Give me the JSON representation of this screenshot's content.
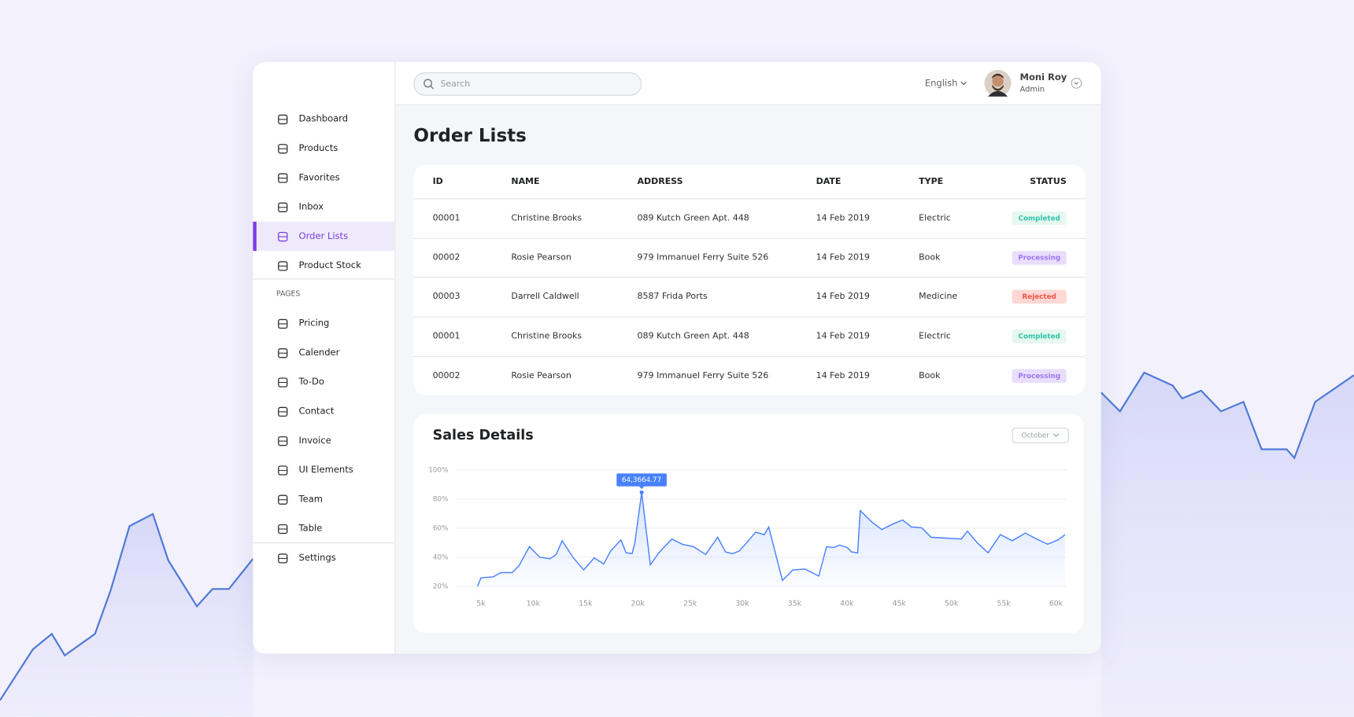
{
  "sidebar": {
    "menu": [
      "Dashboard",
      "Products",
      "Favorites",
      "Inbox",
      "Order Lists",
      "Product Stock"
    ],
    "section_label": "PAGES",
    "pages": [
      "Pricing",
      "Calender",
      "To-Do",
      "Contact",
      "Invoice",
      "UI Elements",
      "Team",
      "Table"
    ],
    "settings": "Settings"
  },
  "header": {
    "search_placeholder": "Search",
    "language": "English",
    "user": {
      "name": "Moni Roy",
      "role": "Admin"
    }
  },
  "page_title": "Order Lists",
  "table": {
    "columns": [
      "ID",
      "NAME",
      "ADDRESS",
      "DATE",
      "TYPE",
      "STATUS"
    ],
    "rows": [
      [
        "00001",
        "Christine Brooks",
        "089 Kutch Green Apt. 448",
        "14 Feb 2019",
        "Electric",
        {
          "text": "Completed",
          "color": "#00b69b",
          "background": "#e6f8ef"
        }
      ],
      [
        "00002",
        "Rosie Pearson",
        "979 Immanuel Ferry Suite 526",
        "14 Feb 2019",
        "Book",
        {
          "text": "Processing",
          "color": "#8f5cf0",
          "background": "#e8defc"
        }
      ],
      [
        "00003",
        "Darrell Caldwell",
        "8587 Frida Ports",
        "14 Feb 2019",
        "Medicine",
        {
          "text": "Rejected",
          "color": "#ef3826",
          "background": "#fcd7d4"
        }
      ],
      [
        "00001",
        "Christine Brooks",
        "089 Kutch Green Apt. 448",
        "14 Feb 2019",
        "Electric",
        {
          "text": "Completed",
          "color": "#00b69b",
          "background": "#e6f8ef"
        }
      ],
      [
        "00002",
        "Rosie Pearson",
        "979 Immanuel Ferry Suite 526",
        "14 Feb 2019",
        "Book",
        {
          "text": "Processing",
          "color": "#8f5cf0",
          "background": "#e8defc"
        }
      ]
    ]
  },
  "sales": {
    "title": "Sales Details",
    "filter": "October",
    "chart_data": {
      "type": "line",
      "color": "#4880ff",
      "grid": true,
      "x": [
        4670,
        5000,
        6160,
        6900,
        7980,
        8640,
        9630,
        10620,
        11610,
        12190,
        12770,
        13840,
        14830,
        15830,
        16740,
        17400,
        18390,
        18880,
        19460,
        19710,
        20370,
        21200,
        22020,
        23260,
        24260,
        25330,
        26490,
        27640,
        28390,
        29050,
        29710,
        30370,
        31280,
        32110,
        32520,
        33840,
        34830,
        36000,
        37310,
        38060,
        38720,
        39300,
        40040,
        40450,
        41030,
        41280,
        42440,
        43350,
        44340,
        45330,
        46160,
        47150,
        48060,
        50950,
        51530,
        52520,
        53510,
        54670,
        55830,
        57070,
        58140,
        59210,
        60210,
        60870
      ],
      "values": [
        20,
        25.9,
        26.5,
        29.5,
        29.5,
        34.2,
        47.3,
        40.1,
        39.0,
        41.9,
        51.4,
        39.6,
        31.3,
        39.6,
        35.4,
        44.3,
        52.0,
        43.1,
        42.5,
        49.6,
        84.6,
        34.8,
        43.1,
        52.6,
        49.0,
        47.3,
        41.9,
        53.8,
        43.7,
        42.5,
        44.3,
        49.6,
        57.3,
        55.6,
        60.9,
        24.1,
        31.3,
        31.9,
        27.1,
        47.3,
        46.7,
        48.4,
        46.7,
        43.7,
        43.1,
        72.1,
        63.9,
        59.1,
        62.7,
        65.6,
        60.9,
        60.3,
        53.8,
        52.6,
        57.9,
        49.6,
        43.1,
        55.6,
        51.4,
        56.7,
        52.6,
        49.0,
        52.0,
        55.6
      ],
      "xlim": [
        3600,
        61000
      ],
      "ylim": [
        20,
        100
      ],
      "xticks": [
        {
          "value": 5000,
          "label": "5k"
        },
        {
          "value": 10000,
          "label": "10k"
        },
        {
          "value": 15000,
          "label": "15k"
        },
        {
          "value": 20000,
          "label": "20k"
        },
        {
          "value": 25000,
          "label": "25k"
        },
        {
          "value": 30000,
          "label": "30k"
        },
        {
          "value": 35000,
          "label": "35k"
        },
        {
          "value": 40000,
          "label": "40k"
        },
        {
          "value": 45000,
          "label": "45k"
        },
        {
          "value": 50000,
          "label": "50k"
        },
        {
          "value": 55000,
          "label": "55k"
        },
        {
          "value": 60000,
          "label": "60k"
        }
      ],
      "yticks": [
        {
          "value": 20,
          "label": "20%"
        },
        {
          "value": 40,
          "label": "40%"
        },
        {
          "value": 60,
          "label": "60%"
        },
        {
          "value": 80,
          "label": "80%"
        },
        {
          "value": 100,
          "label": "100%"
        }
      ],
      "tooltip": "64,3664.77"
    }
  }
}
